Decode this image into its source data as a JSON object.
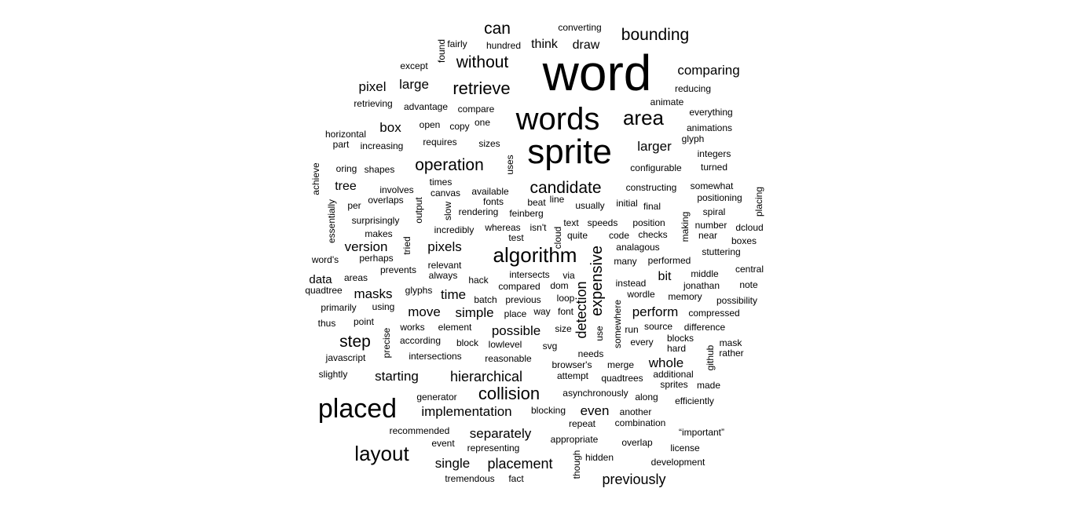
{
  "chart_data": {
    "type": "wordcloud",
    "title": "",
    "color": "#000000",
    "words": [
      {
        "text": "word",
        "weight": 100
      },
      {
        "text": "sprite",
        "weight": 76
      },
      {
        "text": "words",
        "weight": 70
      },
      {
        "text": "placed",
        "weight": 55
      },
      {
        "text": "layout",
        "weight": 47
      },
      {
        "text": "algorithm",
        "weight": 45
      },
      {
        "text": "area",
        "weight": 41
      },
      {
        "text": "collision",
        "weight": 36
      },
      {
        "text": "candidate",
        "weight": 36
      },
      {
        "text": "step",
        "weight": 35
      },
      {
        "text": "retrieve",
        "weight": 34
      },
      {
        "text": "bounding",
        "weight": 34
      },
      {
        "text": "without",
        "weight": 33
      },
      {
        "text": "can",
        "weight": 33
      },
      {
        "text": "operation",
        "weight": 33
      },
      {
        "text": "expensive",
        "weight": 31
      },
      {
        "text": "detection",
        "weight": 31
      },
      {
        "text": "previously",
        "weight": 30
      },
      {
        "text": "placement",
        "weight": 29
      },
      {
        "text": "hierarchical",
        "weight": 29
      },
      {
        "text": "implementation",
        "weight": 29
      },
      {
        "text": "possible",
        "weight": 29
      },
      {
        "text": "simple",
        "weight": 29
      },
      {
        "text": "comparing",
        "weight": 29
      },
      {
        "text": "larger",
        "weight": 28
      },
      {
        "text": "perform",
        "weight": 28
      },
      {
        "text": "whole",
        "weight": 28
      },
      {
        "text": "separately",
        "weight": 28
      },
      {
        "text": "single",
        "weight": 28
      },
      {
        "text": "even",
        "weight": 28
      },
      {
        "text": "starting",
        "weight": 28
      },
      {
        "text": "move",
        "weight": 28
      },
      {
        "text": "masks",
        "weight": 28
      },
      {
        "text": "time",
        "weight": 28
      },
      {
        "text": "pixels",
        "weight": 28
      },
      {
        "text": "version",
        "weight": 28
      },
      {
        "text": "large",
        "weight": 28
      },
      {
        "text": "pixel",
        "weight": 28
      },
      {
        "text": "box",
        "weight": 27
      },
      {
        "text": "think",
        "weight": 27
      },
      {
        "text": "draw",
        "weight": 27
      },
      {
        "text": "tree",
        "weight": 27
      },
      {
        "text": "data",
        "weight": 26
      },
      {
        "text": "bit",
        "weight": 26
      },
      {
        "text": "converting",
        "weight": 20
      },
      {
        "text": "fairly",
        "weight": 20
      },
      {
        "text": "found",
        "weight": 20
      },
      {
        "text": "hundred",
        "weight": 20
      },
      {
        "text": "except",
        "weight": 20
      },
      {
        "text": "reducing",
        "weight": 20
      },
      {
        "text": "animate",
        "weight": 20
      },
      {
        "text": "retrieving",
        "weight": 20
      },
      {
        "text": "advantage",
        "weight": 20
      },
      {
        "text": "compare",
        "weight": 20
      },
      {
        "text": "everything",
        "weight": 20
      },
      {
        "text": "open",
        "weight": 20
      },
      {
        "text": "copy",
        "weight": 20
      },
      {
        "text": "one",
        "weight": 20
      },
      {
        "text": "animations",
        "weight": 20
      },
      {
        "text": "horizontal",
        "weight": 20
      },
      {
        "text": "glyph",
        "weight": 20
      },
      {
        "text": "part",
        "weight": 20
      },
      {
        "text": "increasing",
        "weight": 20
      },
      {
        "text": "requires",
        "weight": 20
      },
      {
        "text": "sizes",
        "weight": 20
      },
      {
        "text": "integers",
        "weight": 20
      },
      {
        "text": "achieve",
        "weight": 20
      },
      {
        "text": "oring",
        "weight": 20
      },
      {
        "text": "shapes",
        "weight": 20
      },
      {
        "text": "uses",
        "weight": 20
      },
      {
        "text": "configurable",
        "weight": 20
      },
      {
        "text": "turned",
        "weight": 20
      },
      {
        "text": "times",
        "weight": 20
      },
      {
        "text": "involves",
        "weight": 20
      },
      {
        "text": "canvas",
        "weight": 20
      },
      {
        "text": "available",
        "weight": 20
      },
      {
        "text": "constructing",
        "weight": 20
      },
      {
        "text": "somewhat",
        "weight": 20
      },
      {
        "text": "placing",
        "weight": 20
      },
      {
        "text": "overlaps",
        "weight": 20
      },
      {
        "text": "output",
        "weight": 20
      },
      {
        "text": "slow",
        "weight": 20
      },
      {
        "text": "fonts",
        "weight": 20
      },
      {
        "text": "beat",
        "weight": 20
      },
      {
        "text": "line",
        "weight": 20
      },
      {
        "text": "usually",
        "weight": 20
      },
      {
        "text": "initial",
        "weight": 20
      },
      {
        "text": "final",
        "weight": 20
      },
      {
        "text": "positioning",
        "weight": 20
      },
      {
        "text": "per",
        "weight": 20
      },
      {
        "text": "essentially",
        "weight": 20
      },
      {
        "text": "rendering",
        "weight": 20
      },
      {
        "text": "feinberg",
        "weight": 20
      },
      {
        "text": "making",
        "weight": 20
      },
      {
        "text": "spiral",
        "weight": 20
      },
      {
        "text": "surprisingly",
        "weight": 20
      },
      {
        "text": "text",
        "weight": 20
      },
      {
        "text": "speeds",
        "weight": 20
      },
      {
        "text": "position",
        "weight": 20
      },
      {
        "text": "number",
        "weight": 20
      },
      {
        "text": "dcloud",
        "weight": 20
      },
      {
        "text": "incredibly",
        "weight": 20
      },
      {
        "text": "whereas",
        "weight": 20
      },
      {
        "text": "isn't",
        "weight": 20
      },
      {
        "text": "cloud",
        "weight": 20
      },
      {
        "text": "makes",
        "weight": 20
      },
      {
        "text": "test",
        "weight": 20
      },
      {
        "text": "quite",
        "weight": 20
      },
      {
        "text": "code",
        "weight": 20
      },
      {
        "text": "checks",
        "weight": 20
      },
      {
        "text": "near",
        "weight": 20
      },
      {
        "text": "boxes",
        "weight": 20
      },
      {
        "text": "tried",
        "weight": 20
      },
      {
        "text": "analagous",
        "weight": 20
      },
      {
        "text": "stuttering",
        "weight": 20
      },
      {
        "text": "perhaps",
        "weight": 20
      },
      {
        "text": "word's",
        "weight": 20
      },
      {
        "text": "relevant",
        "weight": 20
      },
      {
        "text": "many",
        "weight": 20
      },
      {
        "text": "performed",
        "weight": 20
      },
      {
        "text": "prevents",
        "weight": 20
      },
      {
        "text": "central",
        "weight": 20
      },
      {
        "text": "always",
        "weight": 20
      },
      {
        "text": "intersects",
        "weight": 20
      },
      {
        "text": "via",
        "weight": 20
      },
      {
        "text": "middle",
        "weight": 20
      },
      {
        "text": "areas",
        "weight": 20
      },
      {
        "text": "hack",
        "weight": 20
      },
      {
        "text": "compared",
        "weight": 20
      },
      {
        "text": "dom",
        "weight": 20
      },
      {
        "text": "instead",
        "weight": 20
      },
      {
        "text": "jonathan",
        "weight": 20
      },
      {
        "text": "note",
        "weight": 20
      },
      {
        "text": "quadtree",
        "weight": 20
      },
      {
        "text": "glyphs",
        "weight": 20
      },
      {
        "text": "wordle",
        "weight": 20
      },
      {
        "text": "memory",
        "weight": 20
      },
      {
        "text": "batch",
        "weight": 20
      },
      {
        "text": "previous",
        "weight": 20
      },
      {
        "text": "loop",
        "weight": 20
      },
      {
        "text": "possibility",
        "weight": 20
      },
      {
        "text": "primarily",
        "weight": 20
      },
      {
        "text": "using",
        "weight": 20
      },
      {
        "text": "way",
        "weight": 20
      },
      {
        "text": "font",
        "weight": 20
      },
      {
        "text": "somewhere",
        "weight": 20
      },
      {
        "text": "place",
        "weight": 20
      },
      {
        "text": "compressed",
        "weight": 20
      },
      {
        "text": "thus",
        "weight": 20
      },
      {
        "text": "point",
        "weight": 20
      },
      {
        "text": "works",
        "weight": 20
      },
      {
        "text": "element",
        "weight": 20
      },
      {
        "text": "size",
        "weight": 20
      },
      {
        "text": "use",
        "weight": 20
      },
      {
        "text": "run",
        "weight": 20
      },
      {
        "text": "source",
        "weight": 20
      },
      {
        "text": "difference",
        "weight": 20
      },
      {
        "text": "precise",
        "weight": 20
      },
      {
        "text": "according",
        "weight": 20
      },
      {
        "text": "block",
        "weight": 20
      },
      {
        "text": "lowlevel",
        "weight": 20
      },
      {
        "text": "svg",
        "weight": 20
      },
      {
        "text": "every",
        "weight": 20
      },
      {
        "text": "blocks",
        "weight": 20
      },
      {
        "text": "hard",
        "weight": 20
      },
      {
        "text": "mask",
        "weight": 20
      },
      {
        "text": "github",
        "weight": 20
      },
      {
        "text": "rather",
        "weight": 20
      },
      {
        "text": "javascript",
        "weight": 20
      },
      {
        "text": "intersections",
        "weight": 20
      },
      {
        "text": "reasonable",
        "weight": 20
      },
      {
        "text": "needs",
        "weight": 20
      },
      {
        "text": "browser's",
        "weight": 20
      },
      {
        "text": "merge",
        "weight": 20
      },
      {
        "text": "slightly",
        "weight": 20
      },
      {
        "text": "attempt",
        "weight": 20
      },
      {
        "text": "quadtrees",
        "weight": 20
      },
      {
        "text": "additional",
        "weight": 20
      },
      {
        "text": "sprites",
        "weight": 20
      },
      {
        "text": "made",
        "weight": 20
      },
      {
        "text": "asynchronously",
        "weight": 20
      },
      {
        "text": "generator",
        "weight": 20
      },
      {
        "text": "along",
        "weight": 20
      },
      {
        "text": "efficiently",
        "weight": 20
      },
      {
        "text": "blocking",
        "weight": 20
      },
      {
        "text": "another",
        "weight": 20
      },
      {
        "text": "repeat",
        "weight": 20
      },
      {
        "text": "combination",
        "weight": 20
      },
      {
        "text": "recommended",
        "weight": 20
      },
      {
        "text": "“important”",
        "weight": 20
      },
      {
        "text": "appropriate",
        "weight": 20
      },
      {
        "text": "event",
        "weight": 20
      },
      {
        "text": "overlap",
        "weight": 20
      },
      {
        "text": "representing",
        "weight": 20
      },
      {
        "text": "license",
        "weight": 20
      },
      {
        "text": "though",
        "weight": 20
      },
      {
        "text": "hidden",
        "weight": 20
      },
      {
        "text": "development",
        "weight": 20
      },
      {
        "text": "tremendous",
        "weight": 20
      },
      {
        "text": "fact",
        "weight": 20
      }
    ]
  }
}
